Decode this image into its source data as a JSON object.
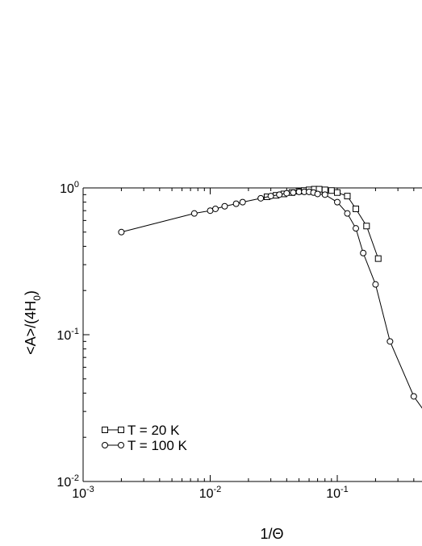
{
  "chart_data": {
    "type": "line",
    "xlabel": "1/Θ",
    "ylabel": "<A>/(4H0)",
    "ylabel_parts": {
      "base": "<A>/(4H",
      "sub": "0",
      "tail": ")"
    },
    "x_scale": "log",
    "y_scale": "log",
    "xlim": [
      0.001,
      0.5
    ],
    "ylim": [
      0.01,
      1
    ],
    "x_ticks": [
      {
        "value": 0.001,
        "base": "10",
        "exp": "-3"
      },
      {
        "value": 0.01,
        "base": "10",
        "exp": "-2"
      },
      {
        "value": 0.1,
        "base": "10",
        "exp": "-1"
      }
    ],
    "y_ticks": [
      {
        "value": 0.01,
        "base": "10",
        "exp": "-2"
      },
      {
        "value": 0.1,
        "base": "10",
        "exp": "-1"
      },
      {
        "value": 1,
        "base": "10",
        "exp": "0"
      }
    ],
    "grid": false,
    "legend_position": "bottom-left",
    "series": [
      {
        "name": "T = 20 K",
        "marker": "square",
        "x": [
          0.028,
          0.033,
          0.038,
          0.044,
          0.05,
          0.055,
          0.06,
          0.066,
          0.072,
          0.08,
          0.09,
          0.1,
          0.12,
          0.14,
          0.17,
          0.21
        ],
        "y": [
          0.87,
          0.89,
          0.91,
          0.93,
          0.95,
          0.96,
          0.97,
          0.98,
          0.98,
          0.97,
          0.96,
          0.93,
          0.88,
          0.72,
          0.55,
          0.33
        ]
      },
      {
        "name": "T = 100 K",
        "marker": "circle",
        "x": [
          0.002,
          0.0075,
          0.01,
          0.011,
          0.013,
          0.016,
          0.018,
          0.025,
          0.03,
          0.035,
          0.04,
          0.045,
          0.05,
          0.055,
          0.06,
          0.065,
          0.07,
          0.08,
          0.1,
          0.12,
          0.14,
          0.16,
          0.2,
          0.26,
          0.4,
          0.5
        ],
        "y": [
          0.5,
          0.67,
          0.7,
          0.72,
          0.75,
          0.78,
          0.8,
          0.85,
          0.88,
          0.9,
          0.92,
          0.93,
          0.94,
          0.94,
          0.94,
          0.93,
          0.91,
          0.9,
          0.8,
          0.67,
          0.53,
          0.36,
          0.22,
          0.09,
          0.038,
          0.029
        ]
      }
    ]
  }
}
